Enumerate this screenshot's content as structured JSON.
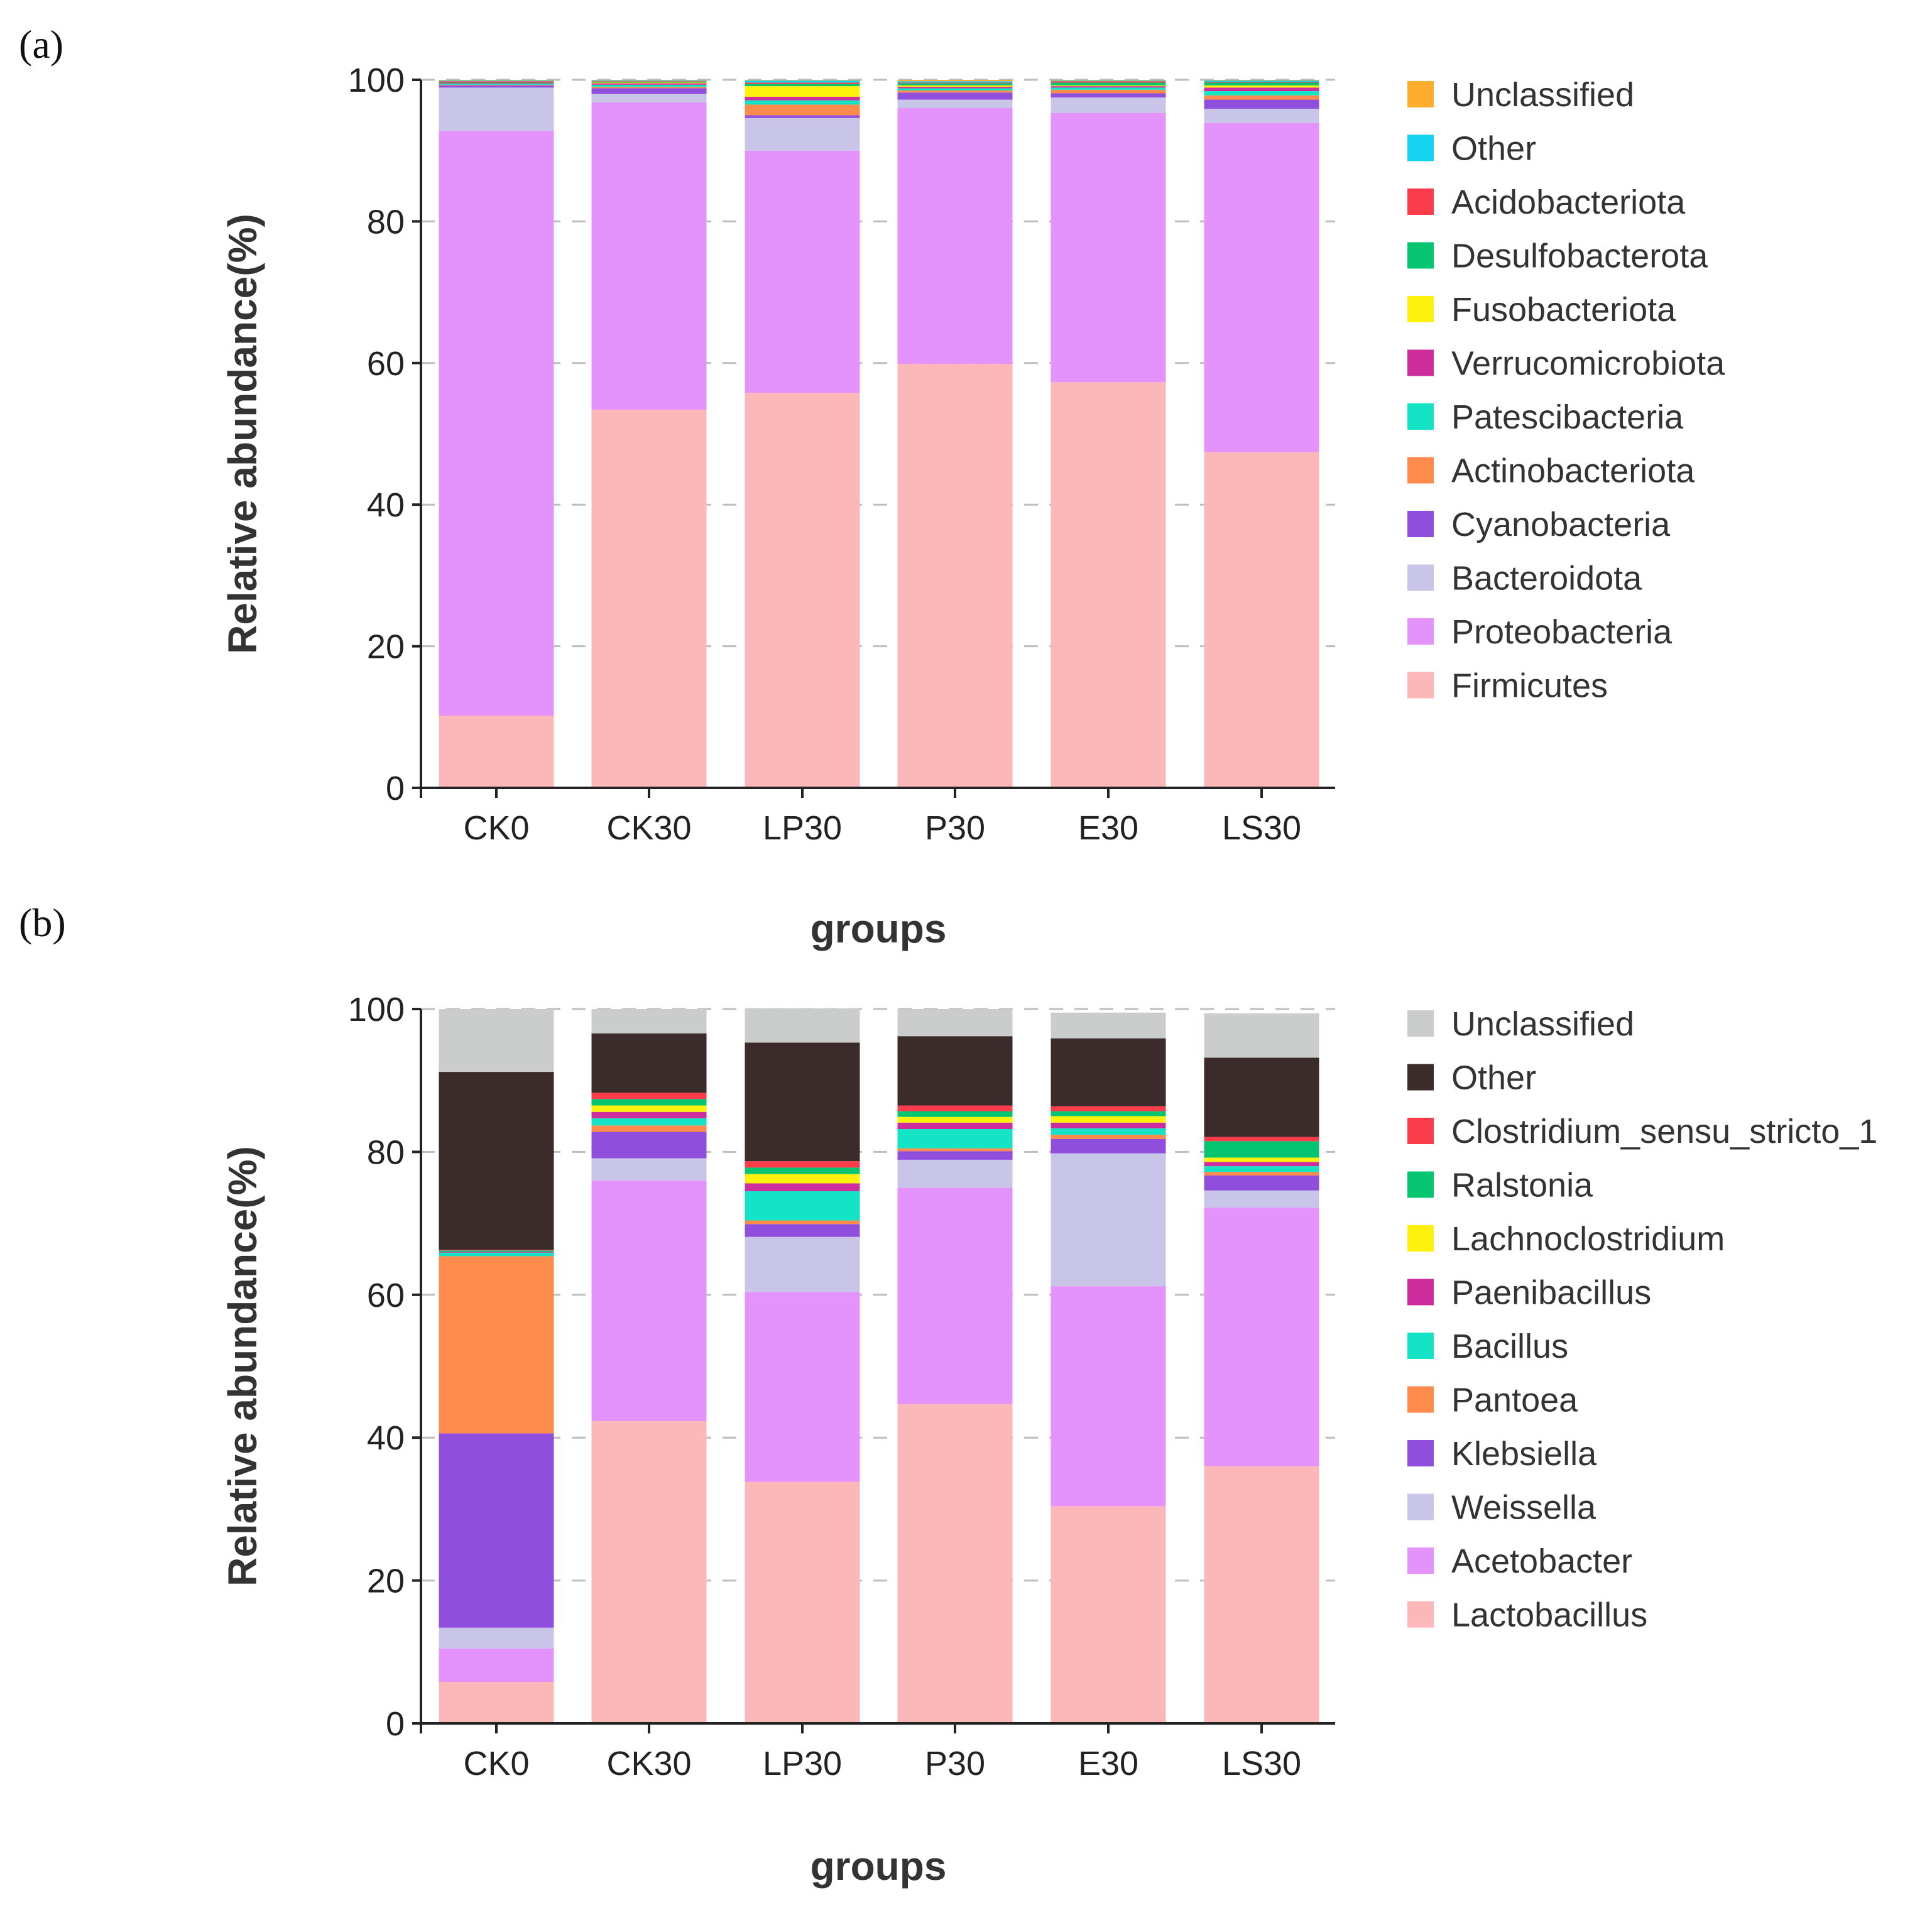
{
  "chart_data": [
    {
      "type": "bar",
      "stacked": true,
      "panel_label": "(a)",
      "xlabel": "groups",
      "ylabel": "Relative abundance(%)",
      "ylim": [
        0,
        100
      ],
      "yticks": [
        0,
        20,
        40,
        60,
        80,
        100
      ],
      "grid": true,
      "legend_position": "right",
      "categories": [
        "CK0",
        "CK30",
        "LP30",
        "P30",
        "E30",
        "LS30"
      ],
      "series": [
        {
          "name": "Firmicutes",
          "color": "#fcb8b9",
          "values": [
            10.2,
            53.4,
            55.8,
            59.9,
            57.3,
            47.4
          ]
        },
        {
          "name": "Proteobacteria",
          "color": "#e393fb",
          "values": [
            82.6,
            43.4,
            34.2,
            36.1,
            38.0,
            46.5
          ]
        },
        {
          "name": "Bacteroidota",
          "color": "#c9c5e9",
          "values": [
            6.1,
            1.2,
            4.6,
            1.2,
            2.2,
            2.0
          ]
        },
        {
          "name": "Cyanobacteria",
          "color": "#8f4fdc",
          "values": [
            0.3,
            0.8,
            0.4,
            1.0,
            0.6,
            1.3
          ]
        },
        {
          "name": "Actinobacteriota",
          "color": "#fe8a4b",
          "values": [
            0.1,
            0.2,
            1.5,
            0.3,
            0.5,
            0.6
          ]
        },
        {
          "name": "Patescibacteria",
          "color": "#14e3c5",
          "values": [
            0.1,
            0.3,
            0.6,
            0.3,
            0.3,
            0.6
          ]
        },
        {
          "name": "Verrucomicrobiota",
          "color": "#ce2d9d",
          "values": [
            0.1,
            0.2,
            0.5,
            0.2,
            0.2,
            0.5
          ]
        },
        {
          "name": "Fusobacteriota",
          "color": "#fef20d",
          "values": [
            0.0,
            0.1,
            1.5,
            0.2,
            0.1,
            0.3
          ]
        },
        {
          "name": "Desulfobacterota",
          "color": "#06c571",
          "values": [
            0.1,
            0.1,
            0.3,
            0.3,
            0.4,
            0.4
          ]
        },
        {
          "name": "Acidobacteriota",
          "color": "#fb3d4b",
          "values": [
            0.2,
            0.1,
            0.2,
            0.1,
            0.2,
            0.1
          ]
        },
        {
          "name": "Other",
          "color": "#14d3f1",
          "values": [
            0.1,
            0.1,
            0.3,
            0.2,
            0.1,
            0.2
          ]
        },
        {
          "name": "Unclassified",
          "color": "#feae2e",
          "values": [
            0.1,
            0.1,
            0.1,
            0.2,
            0.1,
            0.1
          ]
        }
      ]
    },
    {
      "type": "bar",
      "stacked": true,
      "panel_label": "(b)",
      "xlabel": "groups",
      "ylabel": "Relative abundance(%)",
      "ylim": [
        0,
        100
      ],
      "yticks": [
        0,
        20,
        40,
        60,
        80,
        100
      ],
      "grid": true,
      "legend_position": "right",
      "categories": [
        "CK0",
        "CK30",
        "LP30",
        "P30",
        "E30",
        "LS30"
      ],
      "series": [
        {
          "name": "Lactobacillus",
          "color": "#fcb8b9",
          "values": [
            5.8,
            42.3,
            33.8,
            44.7,
            30.4,
            36.0
          ]
        },
        {
          "name": "Acetobacter",
          "color": "#e393fb",
          "values": [
            4.7,
            33.7,
            26.6,
            30.3,
            30.8,
            36.2
          ]
        },
        {
          "name": "Weissella",
          "color": "#c9c5e9",
          "values": [
            2.9,
            3.1,
            7.7,
            3.9,
            18.6,
            2.4
          ]
        },
        {
          "name": "Klebsiella",
          "color": "#8f4fdc",
          "values": [
            27.2,
            3.7,
            1.8,
            1.2,
            2.0,
            2.1
          ]
        },
        {
          "name": "Pantoea",
          "color": "#fe8a4b",
          "values": [
            24.8,
            0.9,
            0.5,
            0.4,
            0.6,
            0.5
          ]
        },
        {
          "name": "Bacillus",
          "color": "#14e3c5",
          "values": [
            0.5,
            1.0,
            4.1,
            2.7,
            0.9,
            0.8
          ]
        },
        {
          "name": "Paenibacillus",
          "color": "#ce2d9d",
          "values": [
            0.1,
            0.9,
            1.1,
            0.9,
            0.8,
            0.6
          ]
        },
        {
          "name": "Lachnoclostridium",
          "color": "#fef20d",
          "values": [
            0.0,
            0.9,
            1.3,
            0.8,
            0.9,
            0.6
          ]
        },
        {
          "name": "Ralstonia",
          "color": "#06c571",
          "values": [
            0.2,
            0.9,
            0.9,
            0.8,
            0.7,
            2.3
          ]
        },
        {
          "name": "Clostridium_sensu_stricto_1",
          "color": "#fb3d4b",
          "values": [
            0.1,
            0.9,
            0.9,
            0.8,
            0.7,
            0.6
          ]
        },
        {
          "name": "Other",
          "color": "#3b2b2a",
          "values": [
            24.9,
            8.3,
            16.6,
            9.7,
            9.5,
            11.1
          ]
        },
        {
          "name": "Unclassified",
          "color": "#cbcdcc",
          "values": [
            8.8,
            3.4,
            4.8,
            3.8,
            3.6,
            6.2
          ]
        }
      ]
    }
  ]
}
